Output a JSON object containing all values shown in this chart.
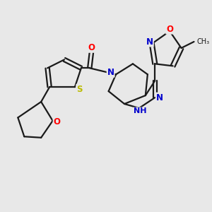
{
  "bg_color": "#e8e8e8",
  "bond_color": "#1a1a1a",
  "bond_width": 1.6,
  "atom_colors": {
    "N": "#0000cc",
    "O": "#ff0000",
    "S": "#bbbb00",
    "C": "#1a1a1a"
  },
  "font_size_atom": 8.5,
  "xlim": [
    0,
    10
  ],
  "ylim": [
    0,
    10
  ]
}
